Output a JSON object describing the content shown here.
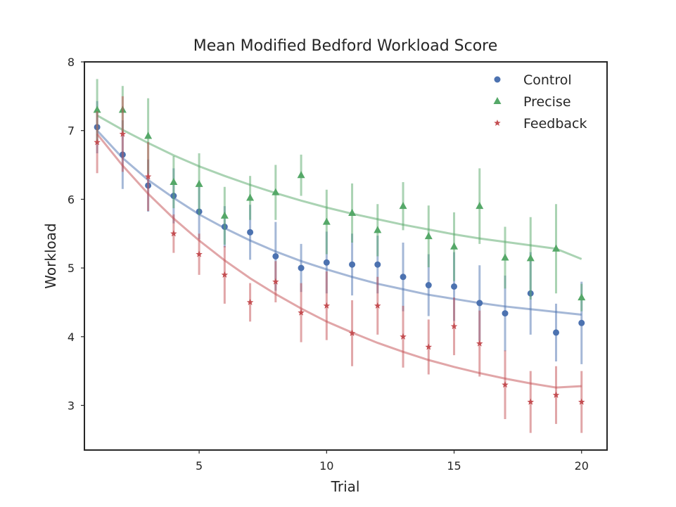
{
  "chart_data": {
    "type": "scatter",
    "title": "Mean Modified Bedford Workload Score",
    "xlabel": "Trial",
    "ylabel": "Workload",
    "xlim": [
      0.5,
      21
    ],
    "ylim": [
      2.35,
      8
    ],
    "xticks": [
      5,
      10,
      15,
      20
    ],
    "yticks": [
      3,
      4,
      5,
      6,
      7,
      8
    ],
    "grid": false,
    "legend_position": "top-right",
    "x": [
      1,
      2,
      3,
      4,
      5,
      6,
      7,
      8,
      9,
      10,
      11,
      12,
      13,
      14,
      15,
      16,
      17,
      18,
      19,
      20
    ],
    "series": [
      {
        "name": "Control",
        "marker": "circle",
        "color": "#4c72b0",
        "values": [
          7.05,
          6.65,
          6.2,
          6.05,
          5.82,
          5.6,
          5.52,
          5.17,
          5.0,
          5.08,
          5.05,
          5.05,
          4.87,
          4.75,
          4.73,
          4.49,
          4.34,
          4.63,
          4.06,
          4.2
        ],
        "err": [
          0.38,
          0.5,
          0.38,
          0.4,
          0.4,
          0.3,
          0.4,
          0.5,
          0.35,
          0.45,
          0.45,
          0.42,
          0.5,
          0.45,
          0.5,
          0.55,
          0.55,
          0.6,
          0.42,
          0.6
        ],
        "fit": [
          7.0,
          6.6,
          6.28,
          6.02,
          5.78,
          5.58,
          5.4,
          5.24,
          5.1,
          4.98,
          4.87,
          4.77,
          4.69,
          4.61,
          4.55,
          4.49,
          4.44,
          4.4,
          4.36,
          4.32
        ]
      },
      {
        "name": "Precise",
        "marker": "triangle",
        "color": "#55a868",
        "values": [
          7.3,
          7.3,
          6.92,
          6.25,
          6.22,
          5.76,
          6.02,
          6.1,
          6.35,
          5.67,
          5.8,
          5.55,
          5.9,
          5.46,
          5.31,
          5.9,
          5.15,
          5.14,
          5.28,
          4.57
        ],
        "err": [
          0.45,
          0.35,
          0.55,
          0.38,
          0.45,
          0.42,
          0.32,
          0.4,
          0.3,
          0.47,
          0.43,
          0.38,
          0.35,
          0.45,
          0.5,
          0.55,
          0.45,
          0.6,
          0.65,
          0.2
        ],
        "fit": [
          7.22,
          7.01,
          6.82,
          6.64,
          6.48,
          6.34,
          6.21,
          6.09,
          5.98,
          5.88,
          5.79,
          5.71,
          5.63,
          5.56,
          5.49,
          5.43,
          5.38,
          5.33,
          5.28,
          5.13
        ]
      },
      {
        "name": "Feedback",
        "marker": "star",
        "color": "#c44e52",
        "values": [
          6.83,
          6.95,
          6.33,
          5.5,
          5.2,
          4.9,
          4.5,
          4.8,
          4.35,
          4.45,
          4.05,
          4.45,
          4.0,
          3.85,
          4.15,
          3.9,
          3.3,
          3.05,
          3.15,
          3.05
        ],
        "err": [
          0.45,
          0.55,
          0.5,
          0.28,
          0.3,
          0.42,
          0.28,
          0.3,
          0.43,
          0.5,
          0.48,
          0.42,
          0.45,
          0.4,
          0.42,
          0.48,
          0.5,
          0.45,
          0.42,
          0.45
        ],
        "fit": [
          6.95,
          6.49,
          6.08,
          5.72,
          5.4,
          5.11,
          4.85,
          4.62,
          4.41,
          4.22,
          4.06,
          3.91,
          3.78,
          3.66,
          3.56,
          3.47,
          3.39,
          3.32,
          3.26,
          3.28
        ]
      }
    ]
  }
}
